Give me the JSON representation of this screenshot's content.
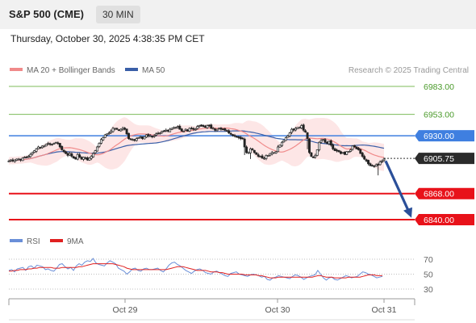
{
  "header": {
    "symbol": "S&P 500 (CME)",
    "interval": "30 MIN",
    "datetime": "Thursday, October 30, 2025 4:38:35 PM CET"
  },
  "legend": {
    "ma20": "MA 20 + Bollinger Bands",
    "ma50": "MA 50",
    "credit": "Research © 2025 Trading Central",
    "rsi": "RSI",
    "ma9": "9MA"
  },
  "colors": {
    "ma20": "#f08a8a",
    "band": "#fde0e0",
    "ma50": "#3a5fa8",
    "resistance": "#7dbb5a",
    "blue_level": "#3f7fe0",
    "support": "#e8121a",
    "candle": "#222222",
    "candle_up": "#ffffff",
    "rsi": "#6a8fd8",
    "rsi_ma": "#e02020",
    "arrow": "#2b4f99"
  },
  "chart_data": {
    "type": "candlestick",
    "y_range": [
      6825,
      6990
    ],
    "x_labels": [
      "Oct 29",
      "Oct 30",
      "Oct 31"
    ],
    "levels": [
      {
        "value": 6983.0,
        "label": "6983.00",
        "kind": "resistance"
      },
      {
        "value": 6953.0,
        "label": "6953.00",
        "kind": "resistance"
      },
      {
        "value": 6930.0,
        "label": "6930.00",
        "kind": "pivot"
      },
      {
        "value": 6868.0,
        "label": "6868.00",
        "kind": "support"
      },
      {
        "value": 6840.0,
        "label": "6840.00",
        "kind": "support"
      }
    ],
    "last_price": {
      "value": 6905.75,
      "label": "6905.75"
    },
    "forecast": {
      "from": 6903,
      "to": 6842
    },
    "closes": [
      6903,
      6904,
      6903,
      6904,
      6905,
      6905,
      6904,
      6906,
      6907,
      6907,
      6908,
      6910,
      6912,
      6914,
      6916,
      6918,
      6917,
      6919,
      6919,
      6921,
      6922,
      6921,
      6921,
      6922,
      6923,
      6922,
      6918,
      6915,
      6913,
      6911,
      6909,
      6911,
      6908,
      6906,
      6905,
      6910,
      6907,
      6905,
      6907,
      6906,
      6904,
      6906,
      6908,
      6911,
      6914,
      6918,
      6922,
      6926,
      6928,
      6931,
      6932,
      6933,
      6935,
      6938,
      6938,
      6937,
      6936,
      6937,
      6938,
      6937,
      6932,
      6927,
      6926,
      6926,
      6925,
      6927,
      6928,
      6929,
      6927,
      6929,
      6931,
      6930,
      6930,
      6929,
      6930,
      6932,
      6932,
      6933,
      6935,
      6935,
      6936,
      6935,
      6937,
      6938,
      6939,
      6939,
      6940,
      6937,
      6935,
      6935,
      6937,
      6935,
      6938,
      6938,
      6937,
      6937,
      6940,
      6941,
      6941,
      6940,
      6939,
      6941,
      6941,
      6938,
      6938,
      6936,
      6937,
      6938,
      6937,
      6937,
      6936,
      6935,
      6933,
      6932,
      6931,
      6930,
      6929,
      6928,
      6927,
      6927,
      6918,
      6912,
      6912,
      6916,
      6915,
      6912,
      6910,
      6908,
      6908,
      6906,
      6906,
      6909,
      6909,
      6911,
      6912,
      6912,
      6913,
      6918,
      6920,
      6923,
      6925,
      6928,
      6930,
      6933,
      6937,
      6936,
      6938,
      6939,
      6939,
      6941,
      6936,
      6934,
      6927,
      6912,
      6908,
      6907,
      6909,
      6915,
      6923,
      6925,
      6926,
      6923,
      6922,
      6924,
      6920,
      6916,
      6914,
      6914,
      6913,
      6911,
      6912,
      6910,
      6913,
      6913,
      6915,
      6919,
      6918,
      6916,
      6915,
      6911,
      6908,
      6905,
      6903,
      6900,
      6898,
      6898,
      6897,
      6899,
      6899,
      6902,
      6903,
      6905
    ]
  },
  "rsi_data": {
    "levels": [
      70,
      50,
      30
    ],
    "range": [
      20,
      80
    ],
    "rsi": [
      55,
      56,
      53,
      57,
      58,
      59,
      55,
      60,
      61,
      58,
      62,
      61,
      60,
      56,
      57,
      55,
      54,
      58,
      63,
      64,
      60,
      57,
      59,
      55,
      61,
      64,
      62,
      66,
      68,
      67,
      71,
      65,
      63,
      62,
      61,
      65,
      68,
      66,
      64,
      58,
      56,
      54,
      50,
      53,
      57,
      58,
      55,
      54,
      57,
      58,
      56,
      56,
      57,
      58,
      55,
      53,
      57,
      62,
      65,
      66,
      63,
      61,
      58,
      55,
      53,
      51,
      54,
      56,
      57,
      55,
      52,
      51,
      50,
      53,
      54,
      52,
      50,
      48,
      47,
      51,
      52,
      53,
      50,
      49,
      48,
      47,
      49,
      50,
      49,
      48,
      46,
      47,
      43,
      42,
      45,
      46,
      48,
      47,
      46,
      45,
      44,
      47,
      49,
      48,
      46,
      43,
      45,
      47,
      48,
      49,
      55,
      50,
      45,
      42,
      45,
      46,
      43,
      42,
      44,
      46,
      48,
      47,
      45,
      46,
      47,
      50,
      53,
      52,
      50,
      49,
      47,
      45,
      46,
      47
    ],
    "ma": [
      54,
      54,
      55,
      55,
      56,
      56,
      56,
      57,
      57,
      58,
      58,
      59,
      59,
      59,
      59,
      59,
      58,
      58,
      58,
      59,
      59,
      59,
      59,
      59,
      59,
      60,
      60,
      61,
      62,
      63,
      64,
      64,
      64,
      64,
      64,
      64,
      64,
      64,
      63,
      62,
      61,
      60,
      58,
      57,
      56,
      56,
      56,
      56,
      56,
      56,
      56,
      56,
      56,
      56,
      56,
      56,
      56,
      57,
      58,
      59,
      60,
      60,
      60,
      59,
      58,
      57,
      56,
      55,
      55,
      55,
      55,
      54,
      53,
      53,
      53,
      52,
      52,
      51,
      50,
      50,
      50,
      50,
      50,
      50,
      49,
      49,
      49,
      49,
      49,
      48,
      48,
      47,
      46,
      45,
      45,
      45,
      46,
      46,
      46,
      46,
      46,
      46,
      46,
      46,
      46,
      46,
      46,
      46,
      46,
      47,
      48,
      48,
      47,
      46,
      46,
      46,
      45,
      45,
      45,
      45,
      45,
      46,
      46,
      46,
      46,
      46,
      47,
      48,
      49,
      49,
      49,
      48,
      48,
      48
    ]
  }
}
